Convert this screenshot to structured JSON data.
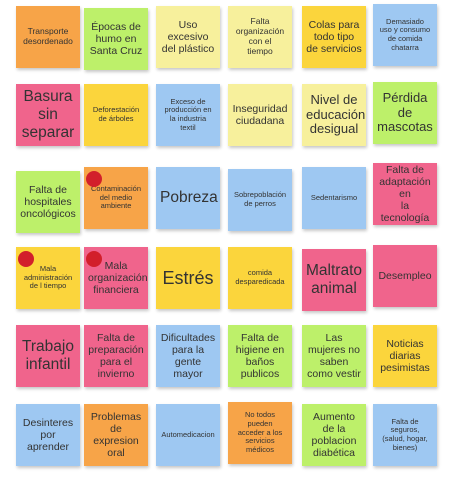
{
  "board": {
    "notes": [
      {
        "text": "Transporte\ndesordenado",
        "color": "#f7a448",
        "size": "s-sm"
      },
      {
        "text": "Épocas de\nhumo en\nSanta Cruz",
        "color": "#bdf06a",
        "size": "s-md"
      },
      {
        "text": "Uso\nexcesivo\ndel plástico",
        "color": "#f7f09c",
        "size": "s-md"
      },
      {
        "text": "Falta\norganización\ncon el\ntiempo",
        "color": "#f7f09c",
        "size": "s-sm"
      },
      {
        "text": "Colas para\ntodo tipo\nde servicios",
        "color": "#fbd53c",
        "size": "s-md"
      },
      {
        "text": "Demasiado\nuso y consumo\nde comida\nchatarra",
        "color": "#9ec8f2",
        "size": "s-xs"
      },
      {
        "text": "Basura\nsin\nseparar",
        "color": "#f0648c",
        "size": "s-xl"
      },
      {
        "text": "Deforestación\nde árboles",
        "color": "#fbd53c",
        "size": "s-xs"
      },
      {
        "text": "Exceso de\nproducción en\nla industria\ntextil",
        "color": "#9ec8f2",
        "size": "s-xs"
      },
      {
        "text": "Inseguridad\nciudadana",
        "color": "#f7f09c",
        "size": "s-md"
      },
      {
        "text": "Nivel de\neducación\ndesigual",
        "color": "#f7f09c",
        "size": "s-lg"
      },
      {
        "text": "Pérdida\nde\nmascotas",
        "color": "#bdf06a",
        "size": "s-lg"
      },
      {
        "text": "Falta de\nhospitales\noncológicos",
        "color": "#bdf06a",
        "size": "s-md"
      },
      {
        "text": "Contaminación\ndel medio\nambiente",
        "color": "#f7a448",
        "size": "s-xs",
        "dot": true
      },
      {
        "text": "Pobreza",
        "color": "#9ec8f2",
        "size": "s-xl"
      },
      {
        "text": "Sobrepoblación\nde perros",
        "color": "#9ec8f2",
        "size": "s-xs"
      },
      {
        "text": "Sedentarismo",
        "color": "#9ec8f2",
        "size": "s-xs"
      },
      {
        "text": "Falta de\nadaptación en\nla tecnología",
        "color": "#f0648c",
        "size": "s-md"
      },
      {
        "text": "Mala\nadministración\nde l tiempo",
        "color": "#fbd53c",
        "size": "s-xs",
        "dot": true
      },
      {
        "text": "Mala\norganización\nfinanciera",
        "color": "#f0648c",
        "size": "s-md",
        "dot": true
      },
      {
        "text": "Estrés",
        "color": "#fbd53c",
        "size": "s-xxl"
      },
      {
        "text": "comida\ndesparedicada",
        "color": "#fbd53c",
        "size": "s-xs"
      },
      {
        "text": "Maltrato\nanimal",
        "color": "#f0648c",
        "size": "s-xl"
      },
      {
        "text": "Desempleo",
        "color": "#f0648c",
        "size": "s-md"
      },
      {
        "text": "Trabajo\ninfantil",
        "color": "#f0648c",
        "size": "s-xl"
      },
      {
        "text": "Falta de\npreparación\npara el\ninvierno",
        "color": "#f0648c",
        "size": "s-md"
      },
      {
        "text": "Dificultades\npara la\ngente\nmayor",
        "color": "#9ec8f2",
        "size": "s-md"
      },
      {
        "text": "Falta de\nhigiene en\nbaños\npublicos",
        "color": "#bdf06a",
        "size": "s-md"
      },
      {
        "text": "Las\nmujeres no\nsaben\ncomo vestir",
        "color": "#bdf06a",
        "size": "s-md"
      },
      {
        "text": "Noticias\ndiarias\npesimistas",
        "color": "#fbd53c",
        "size": "s-md"
      },
      {
        "text": "Desinteres\npor\naprender",
        "color": "#9ec8f2",
        "size": "s-md"
      },
      {
        "text": "Problemas\nde\nexpresion\noral",
        "color": "#f7a448",
        "size": "s-md"
      },
      {
        "text": "Automedicacion",
        "color": "#9ec8f2",
        "size": "s-xs"
      },
      {
        "text": "No todos\npueden\nacceder a los\nservicios\nmédicos",
        "color": "#f7a448",
        "size": "s-xs"
      },
      {
        "text": "Aumento\nde la\npoblacion\ndiabética",
        "color": "#bdf06a",
        "size": "s-md"
      },
      {
        "text": "Falta de\nseguros,\n(salud, hogar,\nbienes)",
        "color": "#9ec8f2",
        "size": "s-xs"
      }
    ]
  }
}
